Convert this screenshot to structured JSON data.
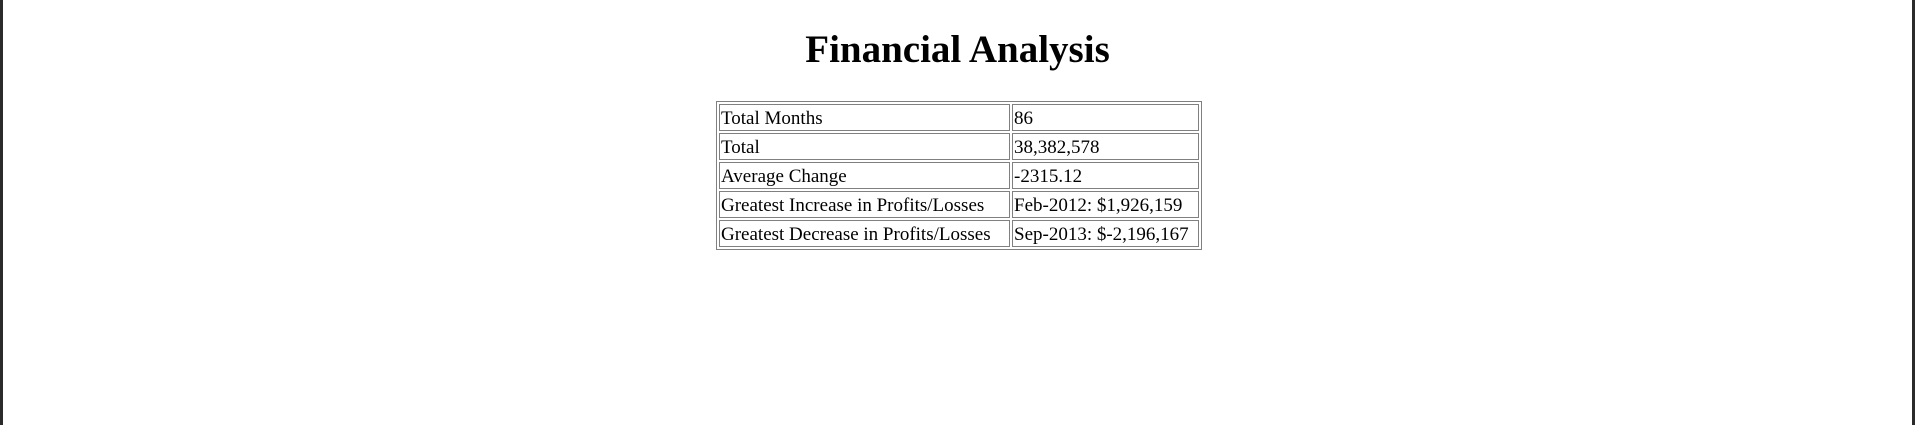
{
  "page": {
    "title": "Financial Analysis"
  },
  "analysis": {
    "rows": [
      {
        "label": "Total Months",
        "value": "86"
      },
      {
        "label": "Total",
        "value": "38,382,578"
      },
      {
        "label": "Average Change",
        "value": "-2315.12"
      },
      {
        "label": "Greatest Increase in Profits/Losses",
        "value": "Feb-2012: $1,926,159"
      },
      {
        "label": "Greatest Decrease in Profits/Losses",
        "value": "Sep-2013: $-2,196,167"
      }
    ]
  }
}
